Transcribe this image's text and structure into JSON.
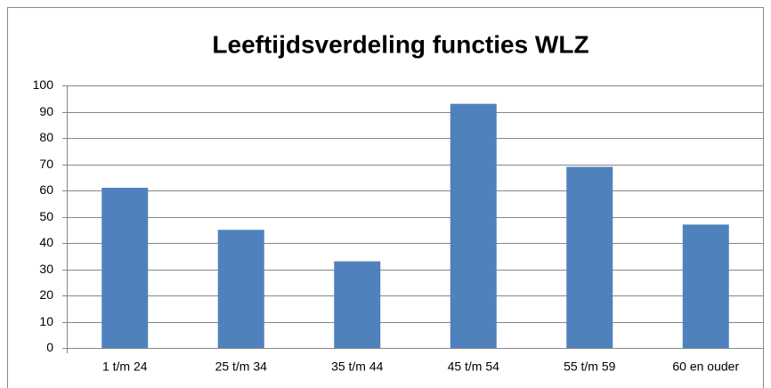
{
  "chart_data": {
    "type": "bar",
    "title": "Leeftijdsverdeling functies WLZ",
    "categories": [
      "1 t/m 24",
      "25 t/m 34",
      "35 t/m 44",
      "45 t/m 54",
      "55 t/m 59",
      "60 en ouder"
    ],
    "values": [
      61,
      45,
      33,
      93,
      69,
      47
    ],
    "color": "#4f81bd",
    "ylim": [
      0,
      100
    ],
    "yticks": [
      0,
      10,
      20,
      30,
      40,
      50,
      60,
      70,
      80,
      90,
      100
    ],
    "grid": true
  }
}
